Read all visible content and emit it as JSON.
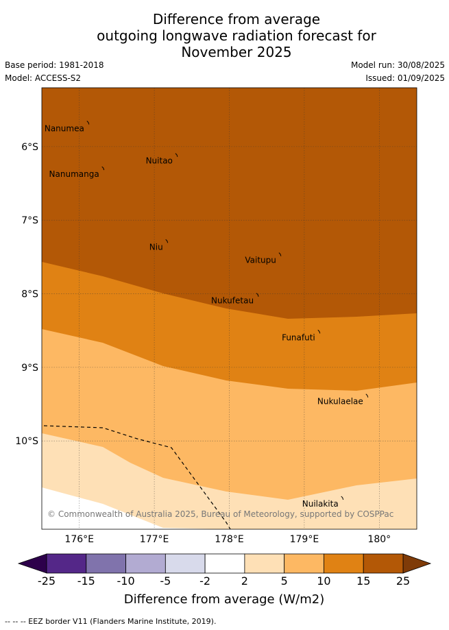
{
  "header": {
    "title_lines": [
      "Difference from average",
      "outgoing longwave radiation forecast for",
      "November 2025"
    ],
    "base_period": "Base period: 1981-2018",
    "model": "Model: ACCESS-S2",
    "model_run": "Model run: 30/08/2025",
    "issued": "Issued: 01/09/2025"
  },
  "map": {
    "lon_range": [
      175.5,
      180.5
    ],
    "lat_range": [
      -11.2,
      -5.2
    ],
    "lon_ticks": [
      176,
      177,
      178,
      179,
      180
    ],
    "lat_ticks": [
      -6,
      -7,
      -8,
      -9,
      -10
    ],
    "lon_tick_labels": [
      "176°E",
      "177°E",
      "178°E",
      "179°E",
      "180°"
    ],
    "lat_tick_labels": [
      "6°S",
      "7°S",
      "8°S",
      "9°S",
      "10°S"
    ],
    "grid": true,
    "colors": {
      "band_15_25": "#b35806",
      "band_10_15": "#e08214",
      "band_5_10": "#fdb863",
      "band_2_5": "#fee0b6"
    },
    "places": [
      {
        "name": "Nanumea",
        "lon": 176.12,
        "lat": -5.68
      },
      {
        "name": "Nuitao",
        "lon": 177.3,
        "lat": -6.12
      },
      {
        "name": "Nanumanga",
        "lon": 176.32,
        "lat": -6.3
      },
      {
        "name": "Niu",
        "lon": 177.17,
        "lat": -7.29
      },
      {
        "name": "Vaitupu",
        "lon": 178.68,
        "lat": -7.47
      },
      {
        "name": "Nukufetau",
        "lon": 178.38,
        "lat": -8.02
      },
      {
        "name": "Funafuti",
        "lon": 179.2,
        "lat": -8.52
      },
      {
        "name": "Nukulaelae",
        "lon": 179.84,
        "lat": -9.39
      },
      {
        "name": "Nuilakita",
        "lon": 179.51,
        "lat": -10.78
      }
    ],
    "copyright": "© Commonwealth of Australia 2025, Bureau of Meteorology, supported by COSPPac"
  },
  "legend": {
    "ticks": [
      "-25",
      "-15",
      "-10",
      "-5",
      "-2",
      "2",
      "5",
      "10",
      "15",
      "25"
    ],
    "colors": [
      "#542788",
      "#8073ac",
      "#b2abd2",
      "#d8daeb",
      "#ffffff",
      "#fee0b6",
      "#fdb863",
      "#e08214",
      "#b35806"
    ],
    "under_color": "#2d004b",
    "over_color": "#7f3b08",
    "label": "Difference from average (W/m2)"
  },
  "footer": "-- -- -- EEZ border V11 (Flanders Marine Institute, 2019)."
}
